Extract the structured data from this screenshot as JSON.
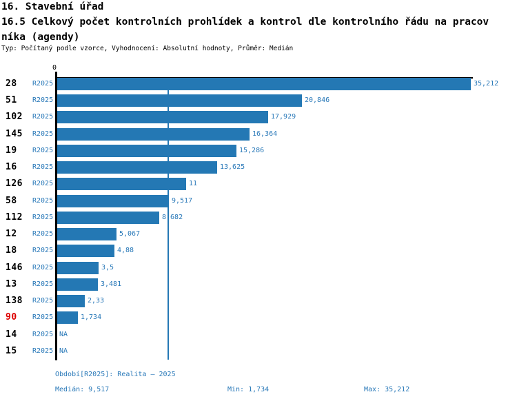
{
  "header": {
    "section_title": "16. Stavební úřad",
    "title_line1": "16.5 Celkový počet kontrolních prohlídek a kontrol dle kontrolního řádu na pracov",
    "title_line2": "níka (agendy)",
    "subtitle": "Typ: Počítaný podle vzorce, Vyhodnocení: Absolutní hodnoty, Průměr: Medián"
  },
  "chart_data": {
    "type": "bar",
    "orientation": "horizontal",
    "title": "16.5 Celkový počet kontrolních prohlídek a kontrol dle kontrolního řádu na pracovníka (agendy)",
    "series_name": "R2025",
    "categories": [
      "28",
      "51",
      "102",
      "145",
      "19",
      "16",
      "126",
      "58",
      "112",
      "12",
      "18",
      "146",
      "13",
      "138",
      "90",
      "14",
      "15"
    ],
    "values": [
      35.212,
      20.846,
      17.929,
      16.364,
      15.286,
      13.625,
      11,
      9.517,
      8.682,
      5.067,
      4.88,
      3.5,
      3.481,
      2.33,
      1.734,
      null,
      null
    ],
    "value_labels": [
      "35,212",
      "20,846",
      "17,929",
      "16,364",
      "15,286",
      "13,625",
      "11",
      "9,517",
      "8,682",
      "5,067",
      "4,88",
      "3,5",
      "3,481",
      "2,33",
      "1,734",
      "NA",
      "NA"
    ],
    "highlighted_category": "90",
    "x_axis": {
      "zero_tick_label": "0",
      "min": 0,
      "max": 35.212
    },
    "median_line_value": 9.517,
    "legend": "none",
    "grid": "single vertical median line",
    "colors": {
      "bar": "#2478b4",
      "text_blue": "#2878b8",
      "highlight_red": "#dd0000",
      "axis": "#000000"
    }
  },
  "footer": {
    "period": "Období[R2025]: Realita – 2025",
    "median": "Medián: 9,517",
    "min": "Min: 1,734",
    "max": "Max: 35,212"
  }
}
